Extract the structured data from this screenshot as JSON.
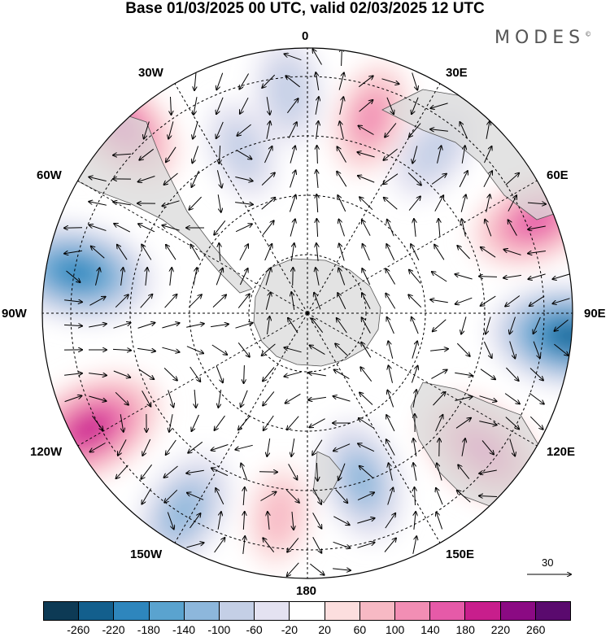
{
  "title": "Base 01/03/2025 00 UTC, valid 02/03/2025 12 UTC",
  "brand": "MODES",
  "brand_mark": "©",
  "longitude_labels": {
    "lon_0": "0",
    "lon_30e": "30E",
    "lon_60e": "60E",
    "lon_90e": "90E",
    "lon_120e": "120E",
    "lon_150e": "150E",
    "lon_180": "180",
    "lon_150w": "150W",
    "lon_120w": "120W",
    "lon_90w": "90W",
    "lon_60w": "60W",
    "lon_30w": "30W"
  },
  "reference_vector": {
    "label": "30"
  },
  "colorbar": {
    "colors": [
      "#0d3a55",
      "#135f8d",
      "#2e86bd",
      "#5aa3cf",
      "#8db7dc",
      "#c4cfe6",
      "#e4e2f1",
      "#ffffff",
      "#fcdede",
      "#f7b9c4",
      "#f28eb4",
      "#e65aa8",
      "#c81e8c",
      "#8b0a83",
      "#5a0a6e"
    ],
    "ticks": [
      "-260",
      "-220",
      "-180",
      "-140",
      "-100",
      "-60",
      "-20",
      "20",
      "60",
      "100",
      "140",
      "180",
      "220",
      "260"
    ]
  },
  "anomaly_centers": [
    {
      "lon": -45,
      "lat": -45,
      "value": 160
    },
    {
      "lon": -80,
      "lat": -50,
      "value": -200
    },
    {
      "lon": -118,
      "lat": -48,
      "value": 200
    },
    {
      "lon": -148,
      "lat": -50,
      "value": -130
    },
    {
      "lon": -172,
      "lat": -55,
      "value": 60
    },
    {
      "lon": 162,
      "lat": -60,
      "value": -120
    },
    {
      "lon": 128,
      "lat": -52,
      "value": 160
    },
    {
      "lon": 95,
      "lat": -45,
      "value": -220
    },
    {
      "lon": 68,
      "lat": -48,
      "value": 150
    },
    {
      "lon": 38,
      "lat": -55,
      "value": -70
    },
    {
      "lon": 18,
      "lat": -55,
      "value": 100
    },
    {
      "lon": -5,
      "lat": -52,
      "value": -80
    },
    {
      "lon": -22,
      "lat": -60,
      "value": -60
    }
  ]
}
